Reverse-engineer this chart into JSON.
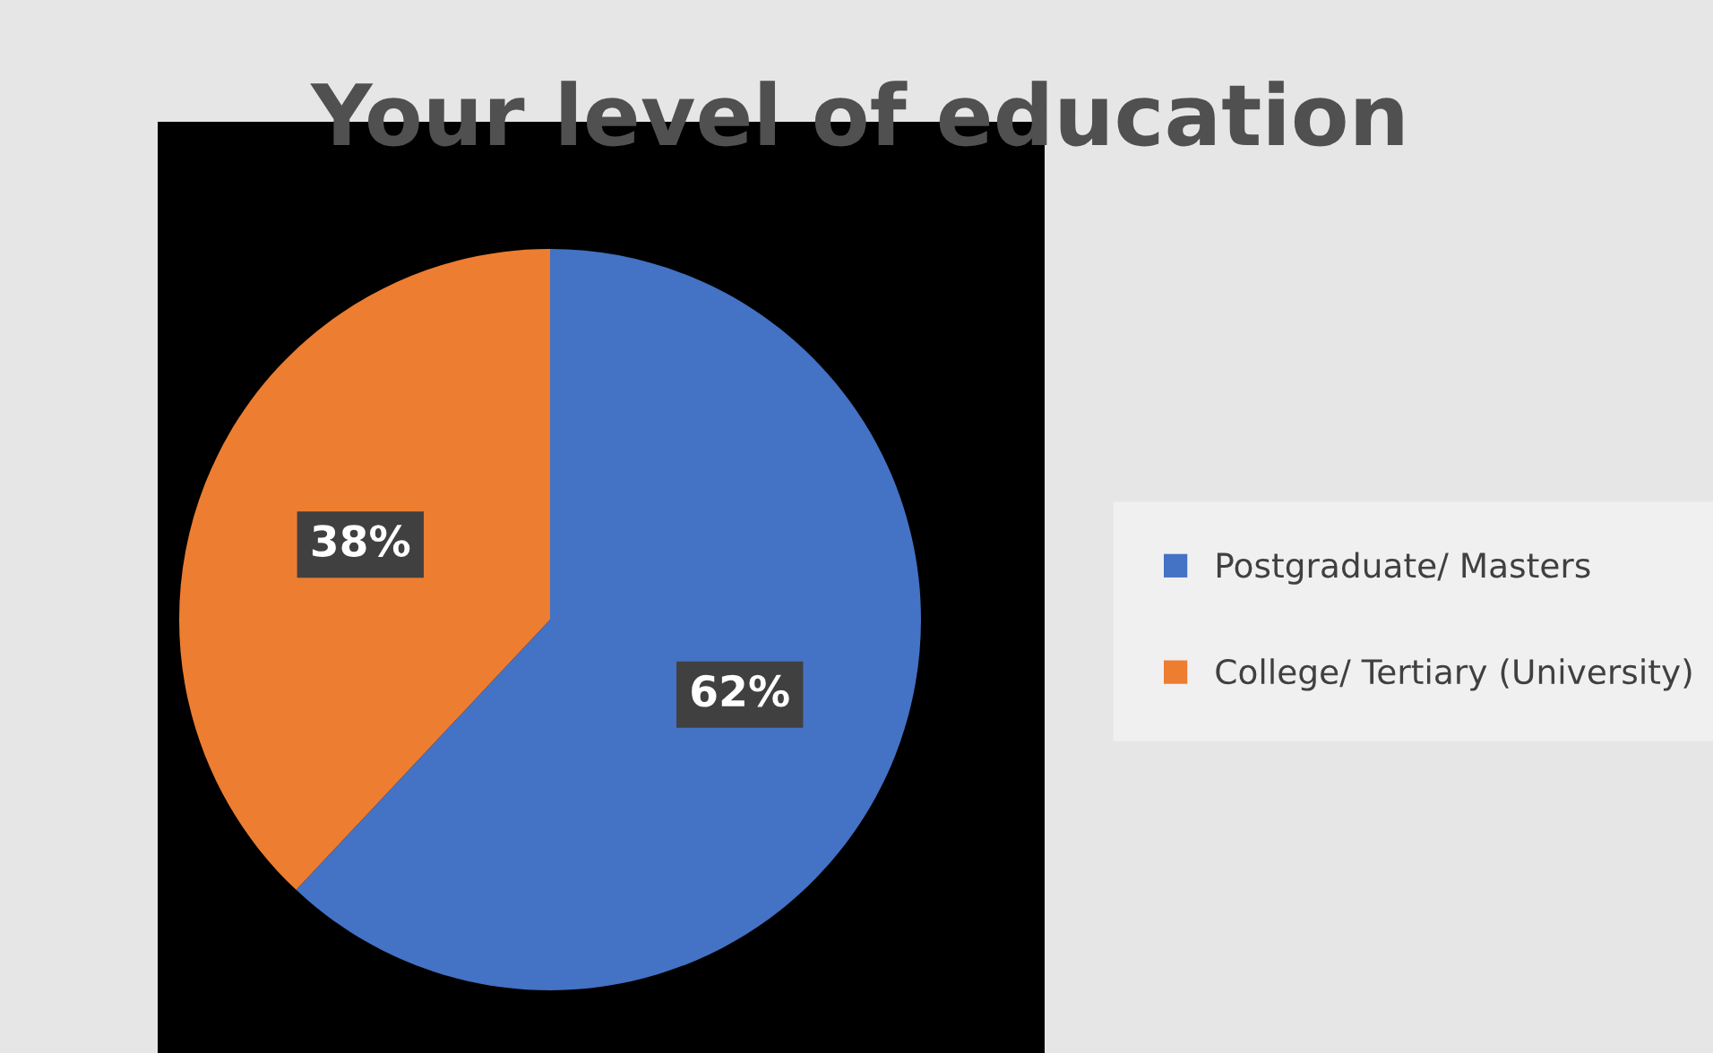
{
  "chart_data": {
    "type": "pie",
    "title": "Your level of education",
    "categories": [
      "Postgraduate/ Masters",
      "College/ Tertiary (University)"
    ],
    "values": [
      62,
      38
    ],
    "colors": [
      "#4472c4",
      "#ed7d31"
    ],
    "value_labels": [
      "62%",
      "38%"
    ],
    "legend": "right"
  }
}
